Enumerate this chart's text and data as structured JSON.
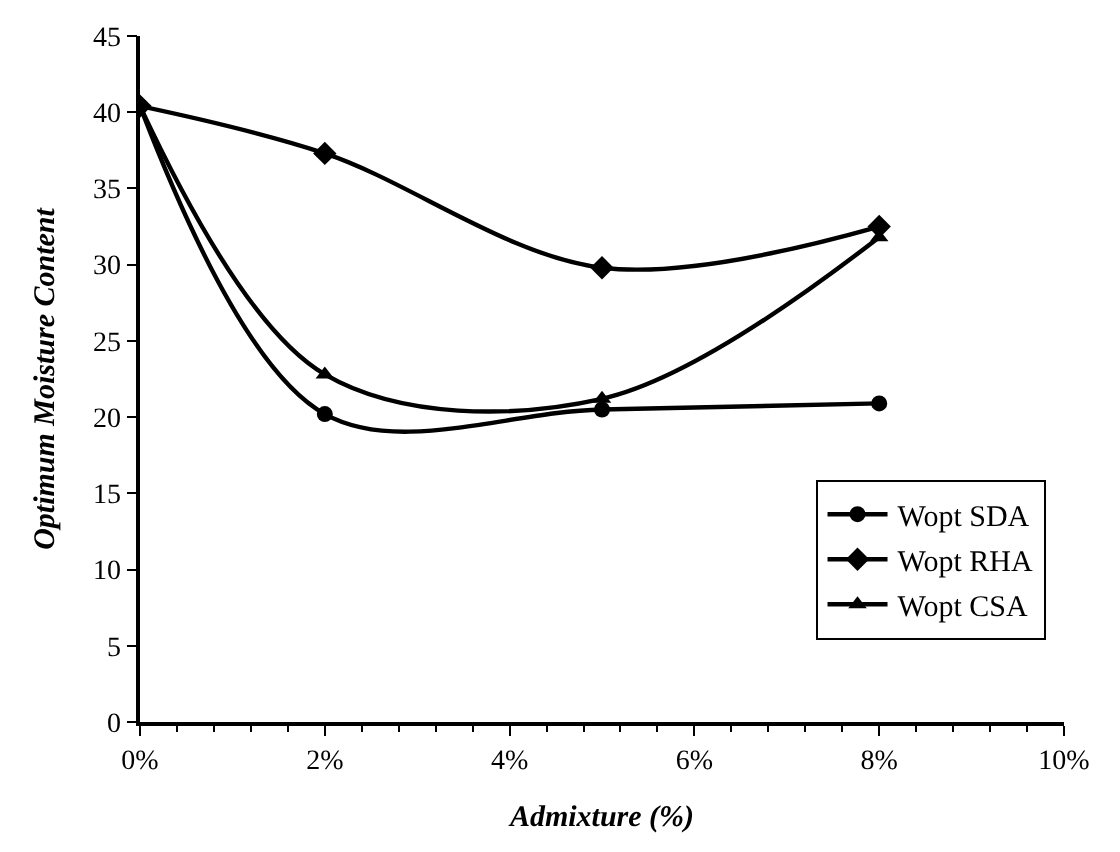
{
  "chart_data": {
    "type": "line",
    "xlabel": "Admixture (%)",
    "ylabel": "Optimum Moisture Content",
    "x": [
      0,
      2,
      5,
      8
    ],
    "series": [
      {
        "name": "Wopt SDA",
        "color": "#000000",
        "marker": "circle",
        "values": [
          40.4,
          20.2,
          20.5,
          20.9
        ]
      },
      {
        "name": "Wopt RHA",
        "color": "#000000",
        "marker": "diamond",
        "values": [
          40.4,
          37.3,
          29.8,
          32.5
        ]
      },
      {
        "name": "Wopt CSA",
        "color": "#000000",
        "marker": "triangle",
        "values": [
          40.4,
          22.8,
          21.2,
          31.8
        ]
      }
    ],
    "xlim": [
      0,
      10
    ],
    "xticks": [
      {
        "value": 0,
        "label": "0%"
      },
      {
        "value": 2,
        "label": "2%"
      },
      {
        "value": 4,
        "label": "4%"
      },
      {
        "value": 6,
        "label": "6%"
      },
      {
        "value": 8,
        "label": "8%"
      },
      {
        "value": 10,
        "label": "10%"
      }
    ],
    "ylim": [
      0,
      45
    ],
    "yticks": [
      0,
      5,
      10,
      15,
      20,
      25,
      30,
      35,
      40,
      45
    ],
    "legend": "bottom right",
    "line_style": "solid"
  }
}
